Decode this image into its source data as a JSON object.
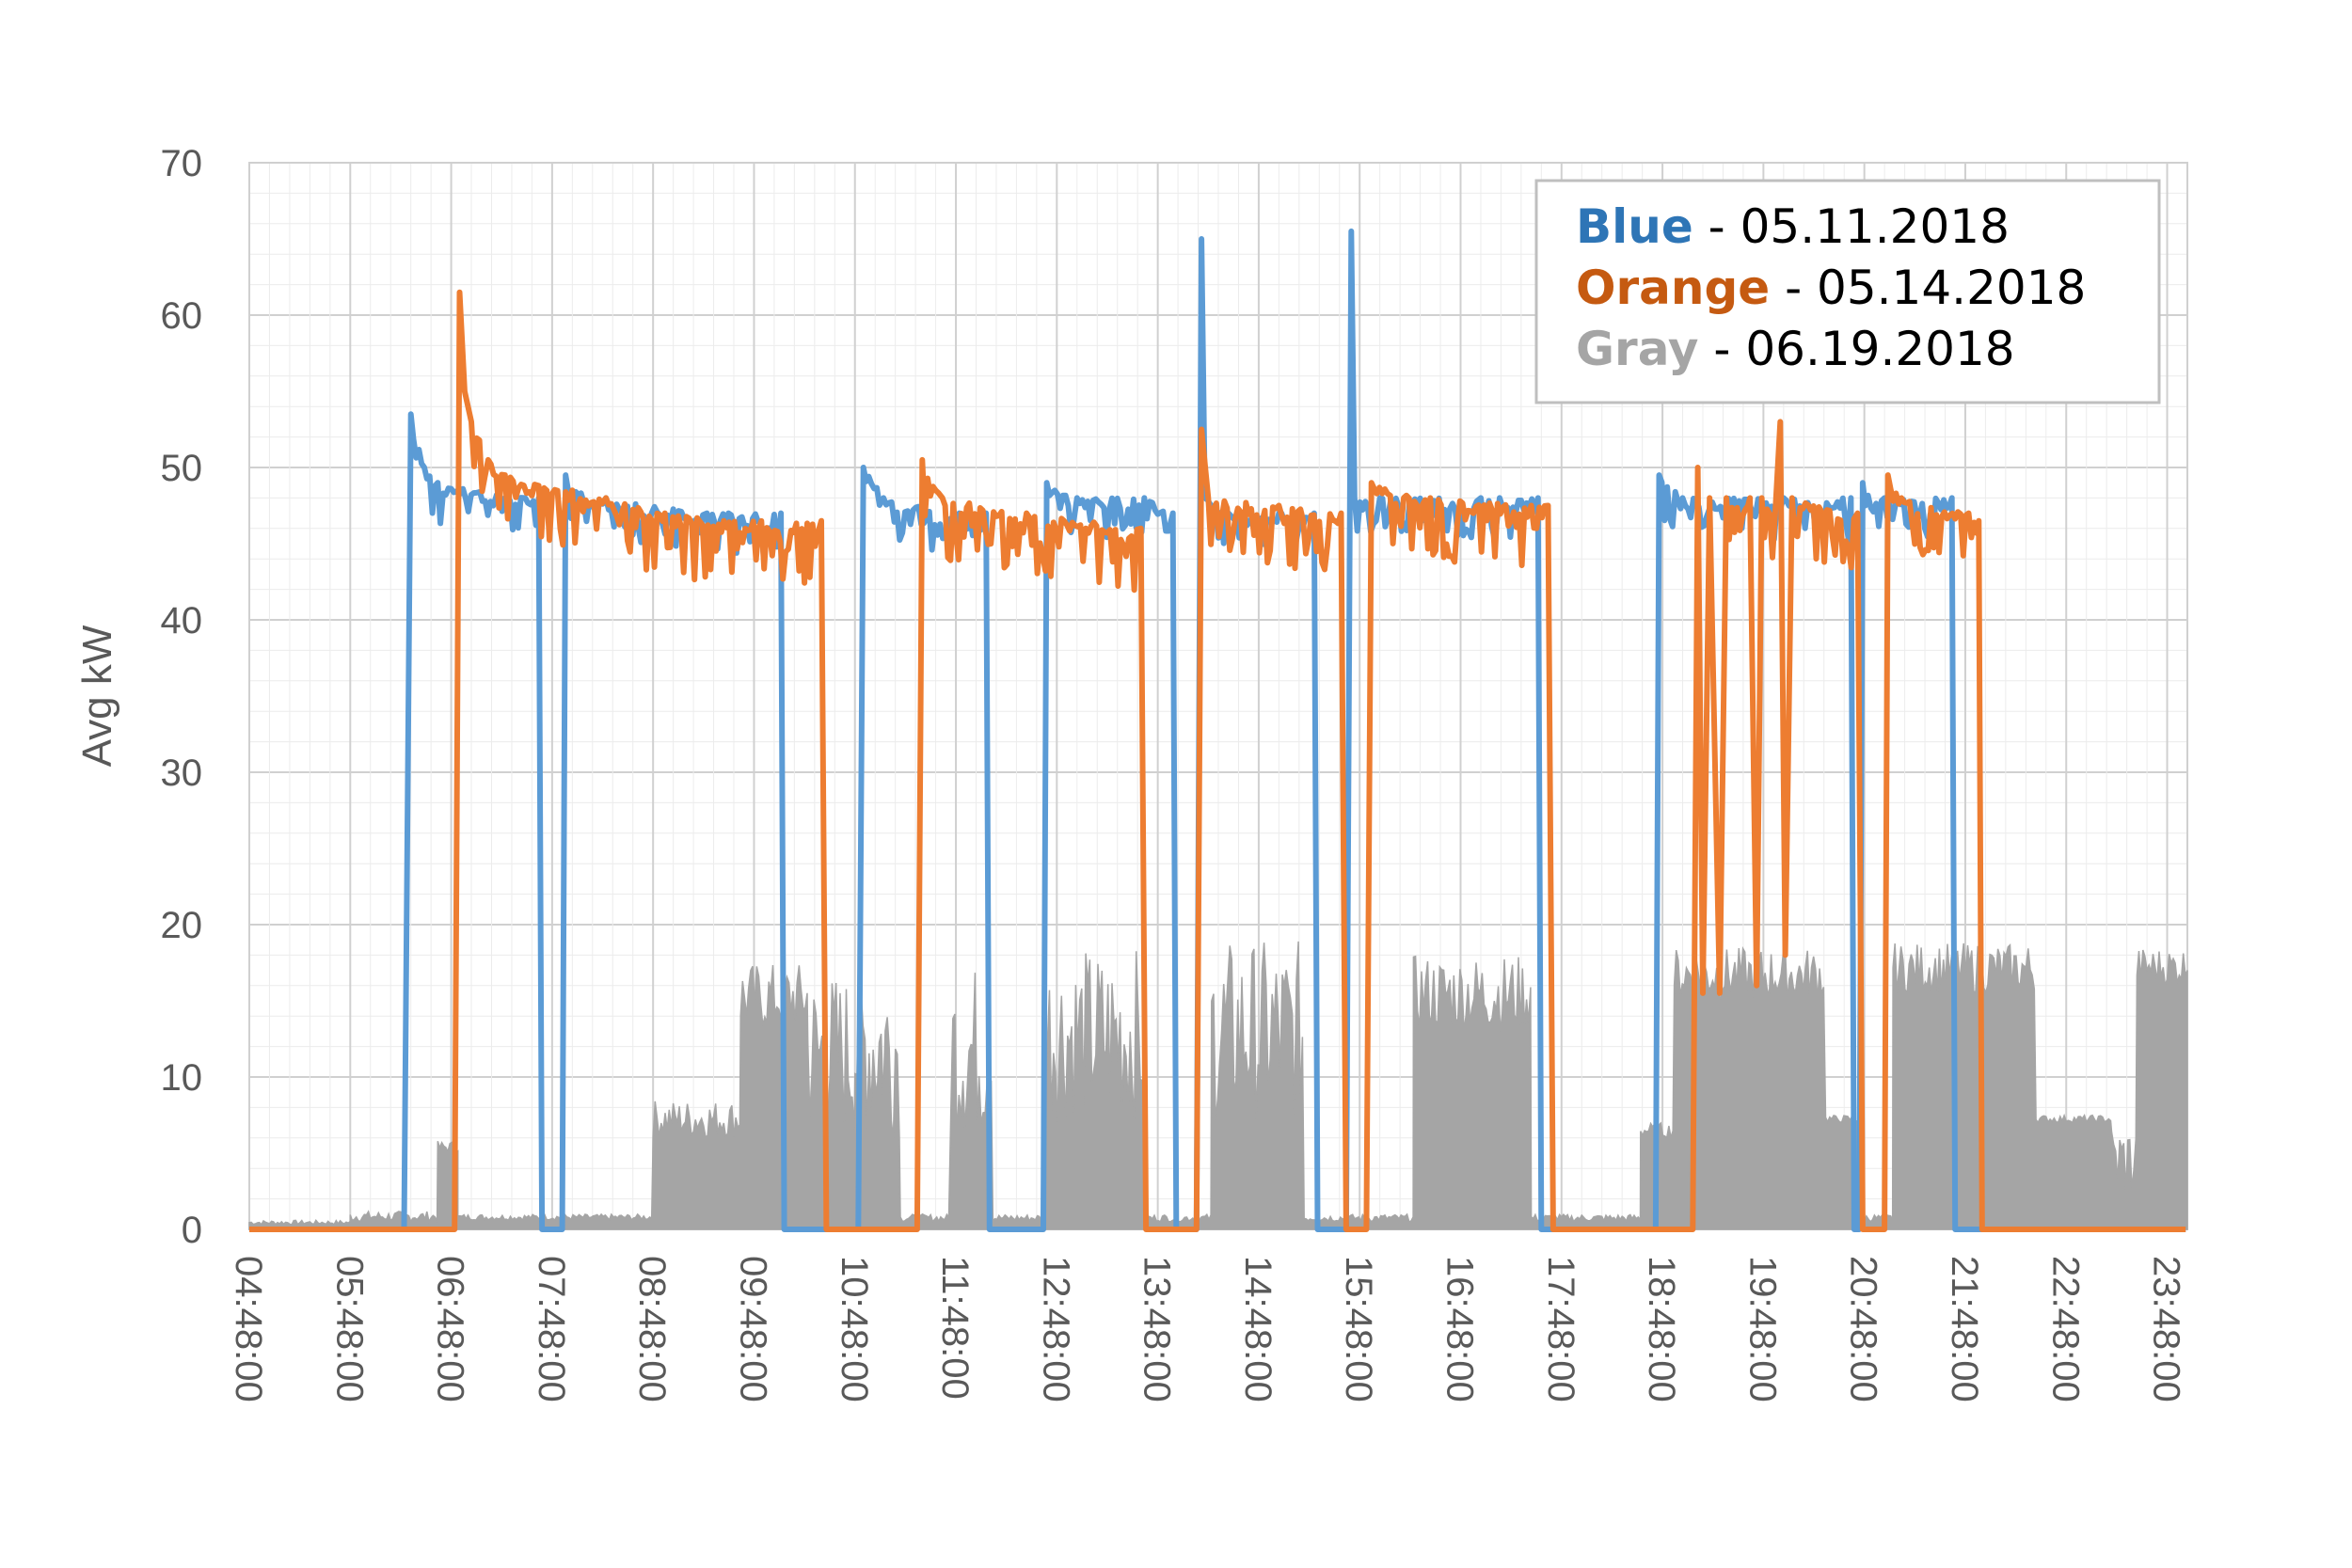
{
  "chart_data": {
    "type": "line",
    "title": "",
    "xlabel": "",
    "ylabel": "Avg kW",
    "ylim": [
      0,
      70
    ],
    "yticks": [
      "0",
      "10",
      "20",
      "30",
      "40",
      "50",
      "60",
      "70"
    ],
    "x_ticks": [
      "04:48:00",
      "05:48:00",
      "06:48:00",
      "07:48:00",
      "08:48:00",
      "09:48:00",
      "10:48:00",
      "11:48:00",
      "12:48:00",
      "13:48:00",
      "14:48:00",
      "15:48:00",
      "16:48:00",
      "17:48:00",
      "18:48:00",
      "19:48:00",
      "20:48:00",
      "21:48:00",
      "22:48:00",
      "23:48:00"
    ],
    "grid": true,
    "legend_position": "top-right",
    "legend": [
      {
        "label": "Blue",
        "date": " - 05.11.2018",
        "color": "#2e75b6"
      },
      {
        "label": "Orange",
        "date": " - 05.14.2018",
        "color": "#c55a11"
      },
      {
        "label": "Gray",
        "date": " - 06.19.2018",
        "color": "#a5a5a5"
      }
    ],
    "series": [
      {
        "color": "#5b9bd5",
        "points": [
          [
            "04:48",
            0
          ],
          [
            "06:20",
            0
          ],
          [
            "06:24",
            53.5
          ],
          [
            "06:32",
            50
          ],
          [
            "06:40",
            49
          ],
          [
            "06:55",
            48.6
          ],
          [
            "07:05",
            48.4
          ],
          [
            "07:15",
            48.2
          ],
          [
            "07:32",
            48
          ],
          [
            "07:40",
            48
          ],
          [
            "07:42",
            0
          ],
          [
            "07:54",
            0
          ],
          [
            "07:56",
            49.5
          ],
          [
            "08:02",
            48.4
          ],
          [
            "08:20",
            48
          ],
          [
            "09:20",
            47
          ],
          [
            "10:04",
            47
          ],
          [
            "10:06",
            0
          ],
          [
            "10:50",
            0
          ],
          [
            "10:53",
            50
          ],
          [
            "11:05",
            48
          ],
          [
            "11:50",
            47
          ],
          [
            "12:06",
            47
          ],
          [
            "12:08",
            0
          ],
          [
            "12:40",
            0
          ],
          [
            "12:42",
            49
          ],
          [
            "13:00",
            48
          ],
          [
            "13:40",
            48
          ],
          [
            "13:57",
            47
          ],
          [
            "13:59",
            0
          ],
          [
            "14:11",
            0
          ],
          [
            "14:14",
            65
          ],
          [
            "14:16",
            48
          ],
          [
            "14:30",
            47
          ],
          [
            "15:00",
            47
          ],
          [
            "15:21",
            47
          ],
          [
            "15:23",
            0
          ],
          [
            "15:40",
            0
          ],
          [
            "15:43",
            65.5
          ],
          [
            "15:45",
            48
          ],
          [
            "16:00",
            48
          ],
          [
            "17:00",
            48
          ],
          [
            "17:34",
            48
          ],
          [
            "17:36",
            0
          ],
          [
            "18:44",
            0
          ],
          [
            "18:46",
            49.5
          ],
          [
            "19:00",
            48
          ],
          [
            "20:00",
            48
          ],
          [
            "20:40",
            48
          ],
          [
            "20:42",
            0
          ],
          [
            "20:45",
            0
          ],
          [
            "20:47",
            49
          ],
          [
            "21:00",
            48
          ],
          [
            "21:40",
            48
          ],
          [
            "21:42",
            0
          ],
          [
            "23:59",
            0
          ]
        ]
      },
      {
        "color": "#ed7d31",
        "points": [
          [
            "04:48",
            0
          ],
          [
            "06:50",
            0
          ],
          [
            "06:53",
            61.5
          ],
          [
            "06:56",
            55
          ],
          [
            "07:00",
            53
          ],
          [
            "07:10",
            50.5
          ],
          [
            "07:20",
            49.5
          ],
          [
            "07:40",
            48.8
          ],
          [
            "08:00",
            48.5
          ],
          [
            "08:20",
            48
          ],
          [
            "08:55",
            47
          ],
          [
            "09:30",
            46.5
          ],
          [
            "10:28",
            46.5
          ],
          [
            "10:31",
            0
          ],
          [
            "11:25",
            0
          ],
          [
            "11:28",
            50.5
          ],
          [
            "11:40",
            48
          ],
          [
            "12:30",
            47
          ],
          [
            "13:38",
            46
          ],
          [
            "13:41",
            0
          ],
          [
            "14:11",
            0
          ],
          [
            "14:14",
            52.5
          ],
          [
            "14:18",
            48
          ],
          [
            "15:00",
            47.5
          ],
          [
            "15:37",
            47
          ],
          [
            "15:40",
            0
          ],
          [
            "15:52",
            0
          ],
          [
            "15:55",
            49
          ],
          [
            "16:30",
            48
          ],
          [
            "17:30",
            47.5
          ],
          [
            "17:40",
            47.5
          ],
          [
            "17:43",
            0
          ],
          [
            "19:06",
            0
          ],
          [
            "19:09",
            50
          ],
          [
            "19:12",
            15.5
          ],
          [
            "19:16",
            48
          ],
          [
            "19:22",
            15.5
          ],
          [
            "19:26",
            48
          ],
          [
            "19:40",
            48
          ],
          [
            "19:44",
            16
          ],
          [
            "19:47",
            48
          ],
          [
            "19:55",
            47
          ],
          [
            "19:58",
            53
          ],
          [
            "20:01",
            18
          ],
          [
            "20:05",
            48
          ],
          [
            "20:44",
            47
          ],
          [
            "20:47",
            0
          ],
          [
            "21:00",
            0
          ],
          [
            "21:02",
            49.5
          ],
          [
            "21:10",
            48
          ],
          [
            "21:50",
            47
          ],
          [
            "21:56",
            46.5
          ],
          [
            "21:58",
            0
          ],
          [
            "23:59",
            0
          ]
        ]
      },
      {
        "color": "#a5a5a5",
        "bursts": [
          [
            "04:48",
            "05:48",
            0.3,
            0.6
          ],
          [
            "05:48",
            "06:40",
            0.5,
            1.2
          ],
          [
            "06:40",
            "06:52",
            5,
            5.8
          ],
          [
            "06:52",
            "08:48",
            0.6,
            1.0
          ],
          [
            "08:48",
            "09:40",
            6,
            8.5
          ],
          [
            "09:40",
            "10:20",
            13,
            17.5
          ],
          [
            "10:20",
            "10:48",
            6,
            17
          ],
          [
            "10:48",
            "11:15",
            6,
            18
          ],
          [
            "11:15",
            "11:45",
            0.5,
            1
          ],
          [
            "11:45",
            "12:10",
            6,
            17.5
          ],
          [
            "12:10",
            "12:40",
            0.5,
            1
          ],
          [
            "12:40",
            "13:40",
            7,
            18.5
          ],
          [
            "13:40",
            "14:20",
            0.5,
            1
          ],
          [
            "14:20",
            "15:15",
            7,
            19
          ],
          [
            "15:15",
            "16:20",
            0.5,
            1
          ],
          [
            "16:20",
            "17:30",
            13,
            18
          ],
          [
            "17:30",
            "18:35",
            0.5,
            1
          ],
          [
            "18:35",
            "18:55",
            6,
            7
          ],
          [
            "18:55",
            "20:25",
            15,
            18.5
          ],
          [
            "20:25",
            "20:48",
            7,
            7.5
          ],
          [
            "20:48",
            "21:05",
            0.5,
            1
          ],
          [
            "21:05",
            "22:30",
            15.5,
            18.8
          ],
          [
            "22:30",
            "23:15",
            7,
            7.5
          ],
          [
            "23:15",
            "23:30",
            2,
            7
          ],
          [
            "23:30",
            "23:59",
            16,
            18.5
          ]
        ]
      }
    ]
  }
}
